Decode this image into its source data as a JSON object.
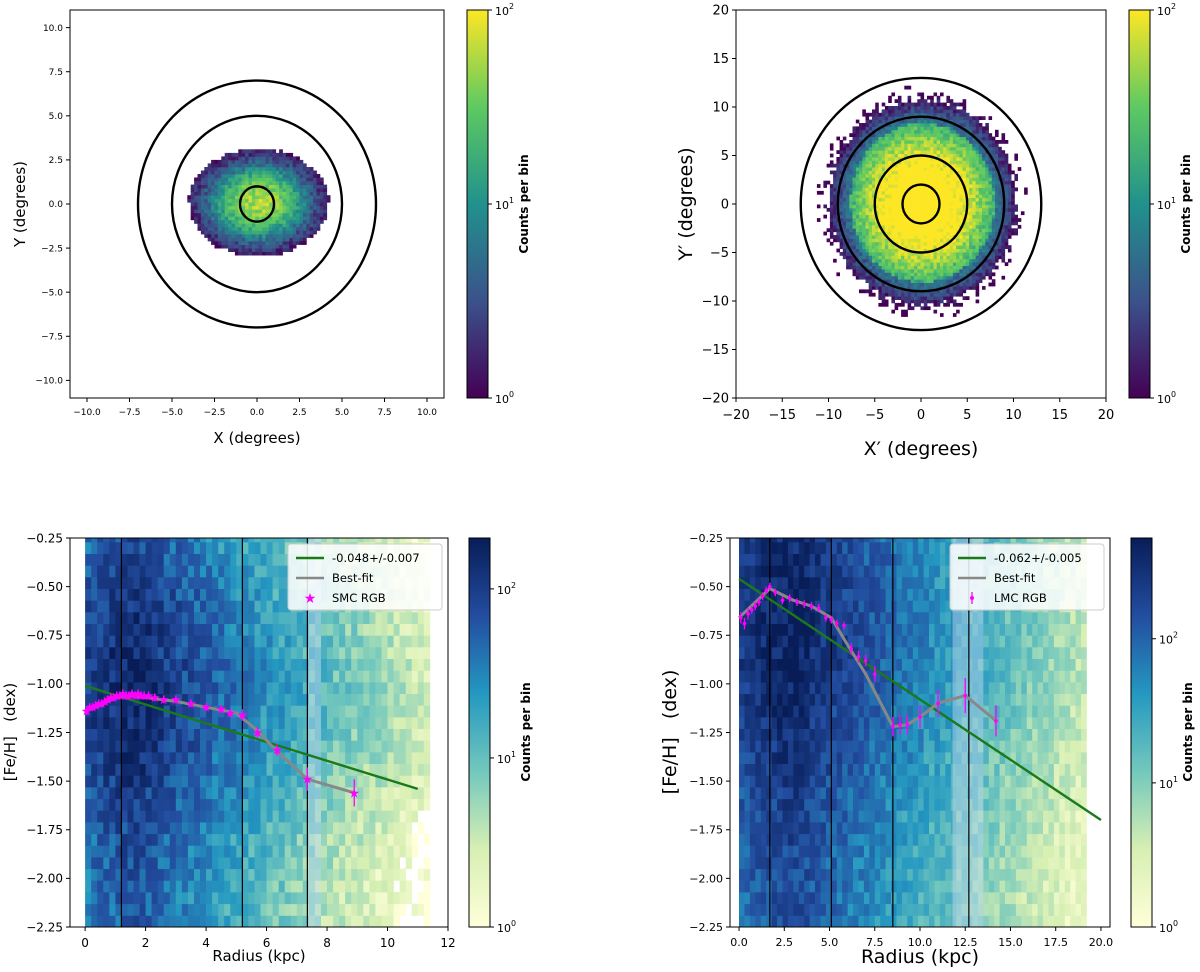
{
  "chart_data": [
    {
      "type": "heatmap",
      "panel": "top-left",
      "title": "",
      "xlabel": "X (degrees)",
      "ylabel": "Y (degrees)",
      "xlim": [
        -11,
        11
      ],
      "ylim": [
        -11,
        11
      ],
      "xticks": [
        -10.0,
        -7.5,
        -5.0,
        -2.5,
        0.0,
        2.5,
        5.0,
        7.5,
        10.0
      ],
      "yticks": [
        -10.0,
        -7.5,
        -5.0,
        -2.5,
        0.0,
        2.5,
        5.0,
        7.5,
        10.0
      ],
      "xtick_labels": [
        "−10.0",
        "−7.5",
        "−5.0",
        "−2.5",
        "0.0",
        "2.5",
        "5.0",
        "7.5",
        "10.0"
      ],
      "ytick_labels": [
        "−10.0",
        "−7.5",
        "−5.0",
        "−2.5",
        "0.0",
        "2.5",
        "5.0",
        "7.5",
        "10.0"
      ],
      "colormap": "viridis",
      "color_scale": "log",
      "colorbar": {
        "label": "Counts per bin",
        "min": 1,
        "max": 100,
        "ticks": [
          {
            "v": 1,
            "base": "10",
            "exp": "0"
          },
          {
            "v": 10,
            "base": "10",
            "exp": "1"
          },
          {
            "v": 100,
            "base": "10",
            "exp": "2"
          }
        ]
      },
      "density": {
        "core_sigma": 1.1,
        "halo_sigma": 3.0,
        "sx": 1.15,
        "sy": 0.85,
        "peak": 60,
        "bin": 0.2,
        "extent": 10.5,
        "seed": 11
      },
      "circles": [
        1.0,
        5.0,
        7.0
      ]
    },
    {
      "type": "heatmap",
      "panel": "top-right",
      "title": "",
      "xlabel": "X′ (degrees)",
      "ylabel": "Y′ (degrees)",
      "xlim": [
        -20,
        20
      ],
      "ylim": [
        -20,
        20
      ],
      "xticks": [
        -20,
        -15,
        -10,
        -5,
        0,
        5,
        10,
        15,
        20
      ],
      "yticks": [
        -20,
        -15,
        -10,
        -5,
        0,
        5,
        10,
        15,
        20
      ],
      "xtick_labels": [
        "−20",
        "−15",
        "−10",
        "−5",
        "0",
        "5",
        "10",
        "15",
        "20"
      ],
      "ytick_labels": [
        "−20",
        "−15",
        "−10",
        "−5",
        "0",
        "5",
        "10",
        "15",
        "20"
      ],
      "colormap": "viridis",
      "color_scale": "log",
      "colorbar": {
        "label": "Counts per bin",
        "min": 1,
        "max": 100,
        "ticks": [
          {
            "v": 1,
            "base": "10",
            "exp": "0"
          },
          {
            "v": 10,
            "base": "10",
            "exp": "1"
          },
          {
            "v": 100,
            "base": "10",
            "exp": "2"
          }
        ]
      },
      "density": {
        "core_sigma": 3.5,
        "halo_sigma": 6.5,
        "sx": 1.0,
        "sy": 1.05,
        "peak": 220,
        "bin": 0.35,
        "extent": 16.5,
        "seed": 23
      },
      "circles": [
        2.0,
        5.0,
        9.0,
        13.0
      ]
    },
    {
      "type": "heatmap",
      "panel": "bottom-left",
      "title": "",
      "xlabel": "Radius (kpc)",
      "ylabel": "[Fe/H]   (dex)",
      "xlim": [
        -0.5,
        12
      ],
      "ylim": [
        -2.25,
        -0.25
      ],
      "xticks": [
        0,
        2,
        4,
        6,
        8,
        10,
        12
      ],
      "yticks": [
        -2.25,
        -2.0,
        -1.75,
        -1.5,
        -1.25,
        -1.0,
        -0.75,
        -0.5,
        -0.25
      ],
      "xtick_labels": [
        "0",
        "2",
        "4",
        "6",
        "8",
        "10",
        "12"
      ],
      "ytick_labels": [
        "−2.25",
        "−2.00",
        "−1.75",
        "−1.50",
        "−1.25",
        "−1.00",
        "−0.75",
        "−0.50",
        "−0.25"
      ],
      "colormap": "YlGnBu",
      "color_scale": "log",
      "colorbar": {
        "label": "Counts per bin",
        "min": 1,
        "max": 200,
        "ticks": [
          {
            "v": 1,
            "base": "10",
            "exp": "0"
          },
          {
            "v": 10,
            "base": "10",
            "exp": "1"
          },
          {
            "v": 100,
            "base": "10",
            "exp": "2"
          }
        ]
      },
      "density": {
        "rmax": 11.2,
        "rbin": 0.2,
        "fbin": 0.06,
        "peak_r": 1.5,
        "r_scale": 2.4,
        "peak_feh": -1.05,
        "feh_sigma": 0.45,
        "peak": 180,
        "seed": 37
      },
      "vlines": [
        1.2,
        5.2,
        7.35
      ],
      "shade_band": [
        7.35,
        7.8
      ],
      "legend": [
        {
          "label": "-0.048+/-0.007",
          "kind": "line",
          "color": "#1a7a1a"
        },
        {
          "label": "Best-fit",
          "kind": "line",
          "color": "#888888"
        },
        {
          "label": "SMC RGB",
          "kind": "star",
          "color": "#ff00ff"
        }
      ],
      "fit_line": {
        "x": [
          0.0,
          11.0
        ],
        "y": [
          -1.01,
          -1.54
        ],
        "color": "#1a7a1a",
        "label": "-0.048+/-0.007"
      },
      "best_fit": {
        "x": [
          0.0,
          0.5,
          1.0,
          1.4,
          2.0,
          3.0,
          4.0,
          5.0,
          5.7,
          6.3,
          7.35,
          8.9
        ],
        "y": [
          -1.14,
          -1.11,
          -1.07,
          -1.06,
          -1.07,
          -1.09,
          -1.12,
          -1.15,
          -1.24,
          -1.34,
          -1.49,
          -1.56
        ],
        "color": "#888888",
        "label": "Best-fit"
      },
      "points": {
        "label": "SMC RGB",
        "marker": "star",
        "color": "#ff00ff",
        "x": [
          0.05,
          0.15,
          0.25,
          0.35,
          0.45,
          0.55,
          0.65,
          0.75,
          0.85,
          0.95,
          1.05,
          1.15,
          1.25,
          1.35,
          1.45,
          1.55,
          1.65,
          1.75,
          1.85,
          1.95,
          2.1,
          2.3,
          2.6,
          3.0,
          3.5,
          4.0,
          4.5,
          4.8,
          5.2,
          5.7,
          6.35,
          7.35,
          8.9
        ],
        "y": [
          -1.14,
          -1.12,
          -1.12,
          -1.11,
          -1.1,
          -1.1,
          -1.09,
          -1.08,
          -1.07,
          -1.07,
          -1.06,
          -1.06,
          -1.05,
          -1.06,
          -1.06,
          -1.05,
          -1.06,
          -1.05,
          -1.06,
          -1.06,
          -1.06,
          -1.07,
          -1.08,
          -1.08,
          -1.1,
          -1.12,
          -1.13,
          -1.15,
          -1.16,
          -1.25,
          -1.34,
          -1.49,
          -1.56
        ],
        "err": [
          0.02,
          0.02,
          0.02,
          0.02,
          0.02,
          0.02,
          0.02,
          0.02,
          0.02,
          0.02,
          0.02,
          0.02,
          0.02,
          0.02,
          0.02,
          0.02,
          0.02,
          0.02,
          0.02,
          0.02,
          0.02,
          0.02,
          0.02,
          0.02,
          0.02,
          0.02,
          0.02,
          0.02,
          0.03,
          0.03,
          0.03,
          0.06,
          0.07
        ]
      }
    },
    {
      "type": "heatmap",
      "panel": "bottom-right",
      "title": "",
      "xlabel": "Radius (kpc)",
      "ylabel": "[Fe/H]   (dex)",
      "xlim": [
        -0.5,
        20.5
      ],
      "ylim": [
        -2.25,
        -0.25
      ],
      "xticks": [
        0.0,
        2.5,
        5.0,
        7.5,
        10.0,
        12.5,
        15.0,
        17.5,
        20.0
      ],
      "yticks": [
        -2.25,
        -2.0,
        -1.75,
        -1.5,
        -1.25,
        -1.0,
        -0.75,
        -0.5,
        -0.25
      ],
      "xtick_labels": [
        "0.0",
        "2.5",
        "5.0",
        "7.5",
        "10.0",
        "12.5",
        "15.0",
        "17.5",
        "20.0"
      ],
      "ytick_labels": [
        "−2.25",
        "−2.00",
        "−1.75",
        "−1.50",
        "−1.25",
        "−1.00",
        "−0.75",
        "−0.50",
        "−0.25"
      ],
      "colormap": "YlGnBu",
      "color_scale": "log",
      "colorbar": {
        "label": "Counts per bin",
        "min": 1,
        "max": 500,
        "ticks": [
          {
            "v": 1,
            "base": "10",
            "exp": "0"
          },
          {
            "v": 10,
            "base": "10",
            "exp": "1"
          },
          {
            "v": 100,
            "base": "10",
            "exp": "2"
          }
        ]
      },
      "density": {
        "rmax": 19.0,
        "rbin": 0.3,
        "fbin": 0.06,
        "peak_r": 2.8,
        "r_scale": 3.6,
        "peak_feh": -0.75,
        "feh_sigma": 0.55,
        "peak": 480,
        "seed": 53
      },
      "vlines": [
        1.7,
        5.1,
        8.5,
        12.7
      ],
      "shade_band": [
        11.8,
        13.5
      ],
      "legend": [
        {
          "label": "-0.062+/-0.005",
          "kind": "line",
          "color": "#1a7a1a"
        },
        {
          "label": "Best-fit",
          "kind": "line",
          "color": "#888888"
        },
        {
          "label": "LMC RGB",
          "kind": "errbar",
          "color": "#ff00ff"
        }
      ],
      "fit_line": {
        "x": [
          0.0,
          20.0
        ],
        "y": [
          -0.46,
          -1.7
        ],
        "color": "#1a7a1a",
        "label": "-0.062+/-0.005"
      },
      "best_fit": {
        "x": [
          0.0,
          1.7,
          3.0,
          4.0,
          5.1,
          6.0,
          7.0,
          8.5,
          9.3,
          10.0,
          11.0,
          12.5,
          14.2
        ],
        "y": [
          -0.66,
          -0.51,
          -0.57,
          -0.6,
          -0.66,
          -0.8,
          -0.95,
          -1.22,
          -1.21,
          -1.17,
          -1.1,
          -1.06,
          -1.19
        ],
        "color": "#888888",
        "label": "Best-fit"
      },
      "points": {
        "label": "LMC RGB",
        "marker": "errbar",
        "color": "#ff00ff",
        "x": [
          0.1,
          0.3,
          0.5,
          0.7,
          0.9,
          1.1,
          1.3,
          1.5,
          1.7,
          2.0,
          2.4,
          2.8,
          3.2,
          3.6,
          4.0,
          4.4,
          4.8,
          5.1,
          5.4,
          5.8,
          6.2,
          6.6,
          7.0,
          7.5,
          8.5,
          8.9,
          9.3,
          10.0,
          11.0,
          12.5,
          14.2
        ],
        "y": [
          -0.66,
          -0.69,
          -0.64,
          -0.62,
          -0.6,
          -0.58,
          -0.55,
          -0.52,
          -0.5,
          -0.53,
          -0.57,
          -0.56,
          -0.58,
          -0.59,
          -0.6,
          -0.61,
          -0.66,
          -0.67,
          -0.69,
          -0.7,
          -0.82,
          -0.86,
          -0.88,
          -0.95,
          -1.22,
          -1.21,
          -1.21,
          -1.17,
          -1.1,
          -1.06,
          -1.19
        ],
        "err": [
          0.03,
          0.03,
          0.03,
          0.02,
          0.02,
          0.02,
          0.02,
          0.02,
          0.02,
          0.02,
          0.02,
          0.02,
          0.02,
          0.02,
          0.02,
          0.02,
          0.02,
          0.02,
          0.02,
          0.02,
          0.03,
          0.03,
          0.03,
          0.04,
          0.05,
          0.05,
          0.05,
          0.06,
          0.07,
          0.09,
          0.08
        ]
      }
    }
  ]
}
